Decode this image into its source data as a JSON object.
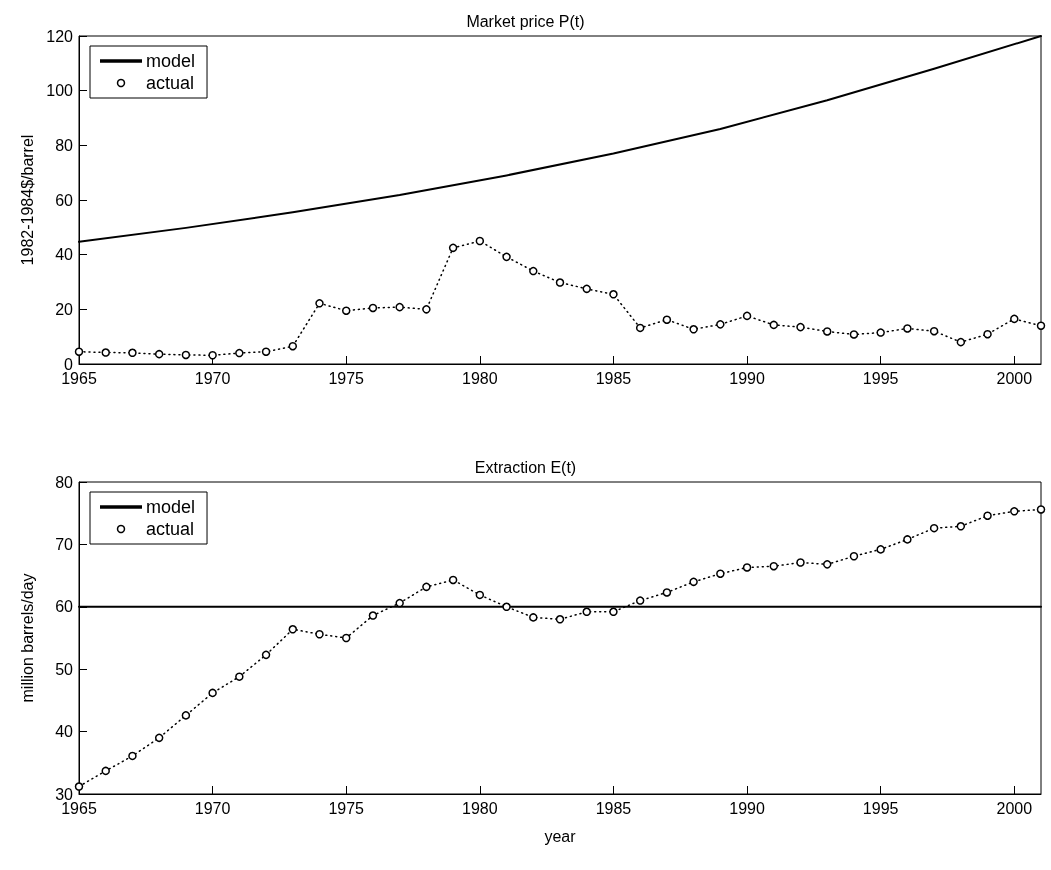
{
  "chart_data": [
    {
      "type": "line",
      "title": "Market price P(t)",
      "ylabel": "1982-1984$/barrel",
      "xlim": [
        1965,
        2001
      ],
      "xticks": [
        1965,
        1970,
        1975,
        1980,
        1985,
        1990,
        1995,
        2000
      ],
      "ylim": [
        0,
        120
      ],
      "yticks": [
        0,
        20,
        40,
        60,
        80,
        100,
        120
      ],
      "grid": false,
      "legend": "top left",
      "series": [
        {
          "name": "model",
          "color": "#000000",
          "marker": "none",
          "line_style": "solid",
          "x": [
            1965,
            1969,
            1973,
            1977,
            1981,
            1985,
            1989,
            1993,
            1997,
            2001
          ],
          "values": [
            44.7,
            49.8,
            55.5,
            61.8,
            69,
            77,
            86,
            96.5,
            108,
            120
          ]
        },
        {
          "name": "actual",
          "color": "#000000",
          "marker": "circle",
          "line_style": "dotted",
          "x": [
            1965,
            1966,
            1967,
            1968,
            1969,
            1970,
            1971,
            1972,
            1973,
            1974,
            1975,
            1976,
            1977,
            1978,
            1979,
            1980,
            1981,
            1982,
            1983,
            1984,
            1985,
            1986,
            1987,
            1988,
            1989,
            1990,
            1991,
            1992,
            1993,
            1994,
            1995,
            1996,
            1997,
            1998,
            1999,
            2000,
            2001
          ],
          "values": [
            4.5,
            4.2,
            4.1,
            3.6,
            3.3,
            3.2,
            4.0,
            4.5,
            6.5,
            22.2,
            19.5,
            20.5,
            20.8,
            20.0,
            42.5,
            45,
            39.2,
            34,
            29.8,
            27.5,
            25.5,
            13.2,
            16.2,
            12.7,
            14.5,
            17.6,
            14.3,
            13.5,
            11.9,
            10.8,
            11.5,
            13.0,
            12.0,
            8.0,
            10.9,
            16.5,
            14.0
          ]
        }
      ]
    },
    {
      "type": "line",
      "title": "Extraction E(t)",
      "xlabel": "year",
      "ylabel": "million barrels/day",
      "xlim": [
        1965,
        2001
      ],
      "xticks": [
        1965,
        1970,
        1975,
        1980,
        1985,
        1990,
        1995,
        2000
      ],
      "ylim": [
        30,
        80
      ],
      "yticks": [
        30,
        40,
        50,
        60,
        70,
        80
      ],
      "grid": false,
      "legend": "top left",
      "series": [
        {
          "name": "model",
          "color": "#000000",
          "marker": "none",
          "line_style": "solid",
          "x": [
            1965,
            2001
          ],
          "values": [
            60,
            60
          ]
        },
        {
          "name": "actual",
          "color": "#000000",
          "marker": "circle",
          "line_style": "dotted",
          "x": [
            1965,
            1966,
            1967,
            1968,
            1969,
            1970,
            1971,
            1972,
            1973,
            1974,
            1975,
            1976,
            1977,
            1978,
            1979,
            1980,
            1981,
            1982,
            1983,
            1984,
            1985,
            1986,
            1987,
            1988,
            1989,
            1990,
            1991,
            1992,
            1993,
            1994,
            1995,
            1996,
            1997,
            1998,
            1999,
            2000,
            2001
          ],
          "values": [
            31.2,
            33.7,
            36.1,
            39.0,
            42.6,
            46.2,
            48.8,
            52.3,
            56.4,
            55.6,
            55.0,
            58.6,
            60.6,
            63.2,
            64.3,
            61.9,
            60.0,
            58.3,
            58.0,
            59.2,
            59.2,
            61.0,
            62.3,
            64.0,
            65.3,
            66.3,
            66.5,
            67.1,
            66.8,
            68.1,
            69.2,
            70.8,
            72.6,
            72.9,
            74.6,
            75.3,
            75.6
          ]
        }
      ]
    }
  ]
}
